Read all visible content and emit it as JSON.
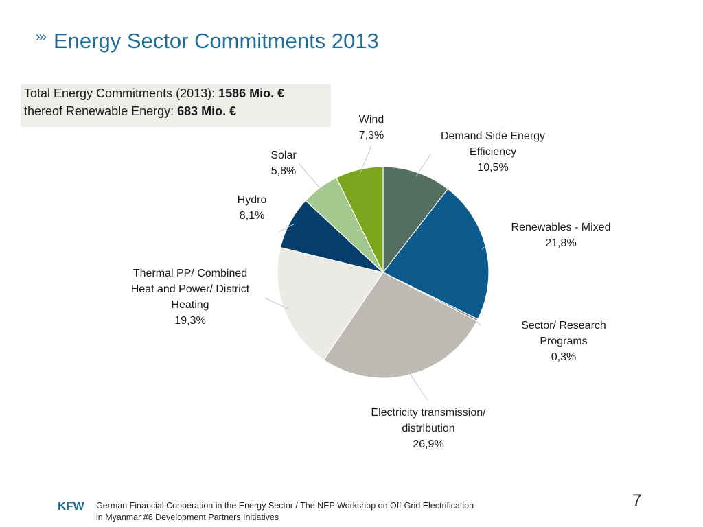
{
  "slide": {
    "title_marker": "›››",
    "title": "Energy Sector Commitments 2013",
    "summary": {
      "line1_prefix": "Total Energy Commitments (2013): ",
      "line1_value": "1586 Mio. €",
      "line2_prefix": "thereof Renewable Energy: ",
      "line2_value": "683 Mio. €"
    },
    "footer": {
      "logo": "KFW",
      "line1": "German Financial Cooperation in the Energy Sector / The NEP Workshop on Off-Grid Electrification",
      "line2": "in Myanmar #6 Development Partners Initiatives",
      "page_number": "7"
    }
  },
  "chart_data": {
    "type": "pie",
    "title": "",
    "slices": [
      {
        "name": "Demand Side Energy Efficiency",
        "value": 10.5,
        "label_lines": [
          "Demand Side Energy",
          "Efficiency"
        ],
        "pct": "10,5%",
        "color": "#546e62"
      },
      {
        "name": "Renewables - Mixed",
        "value": 21.8,
        "label_lines": [
          "Renewables - Mixed"
        ],
        "pct": "21,8%",
        "color": "#0c5a8c"
      },
      {
        "name": "Sector/ Research Programs",
        "value": 0.3,
        "label_lines": [
          "Sector/ Research",
          "Programs"
        ],
        "pct": "0,3%",
        "color": "#5f7a70"
      },
      {
        "name": "Electricity transmission/ distribution",
        "value": 26.9,
        "label_lines": [
          "Electricity transmission/",
          "distribution"
        ],
        "pct": "26,9%",
        "color": "#bdbab4"
      },
      {
        "name": "Thermal PP/ Combined Heat and Power/ District Heating",
        "value": 19.3,
        "label_lines": [
          "Thermal PP/ Combined",
          "Heat and Power/ District",
          "Heating"
        ],
        "pct": "19,3%",
        "color": "#eceae5"
      },
      {
        "name": "Hydro",
        "value": 8.1,
        "label_lines": [
          "Hydro"
        ],
        "pct": "8,1%",
        "color": "#063f6b"
      },
      {
        "name": "Solar",
        "value": 5.8,
        "label_lines": [
          "Solar"
        ],
        "pct": "5,8%",
        "color": "#a3c98f"
      },
      {
        "name": "Wind",
        "value": 7.3,
        "label_lines": [
          "Wind"
        ],
        "pct": "7,3%",
        "color": "#7aa51d"
      }
    ],
    "start_angle_deg": 0,
    "direction": "clockwise"
  }
}
